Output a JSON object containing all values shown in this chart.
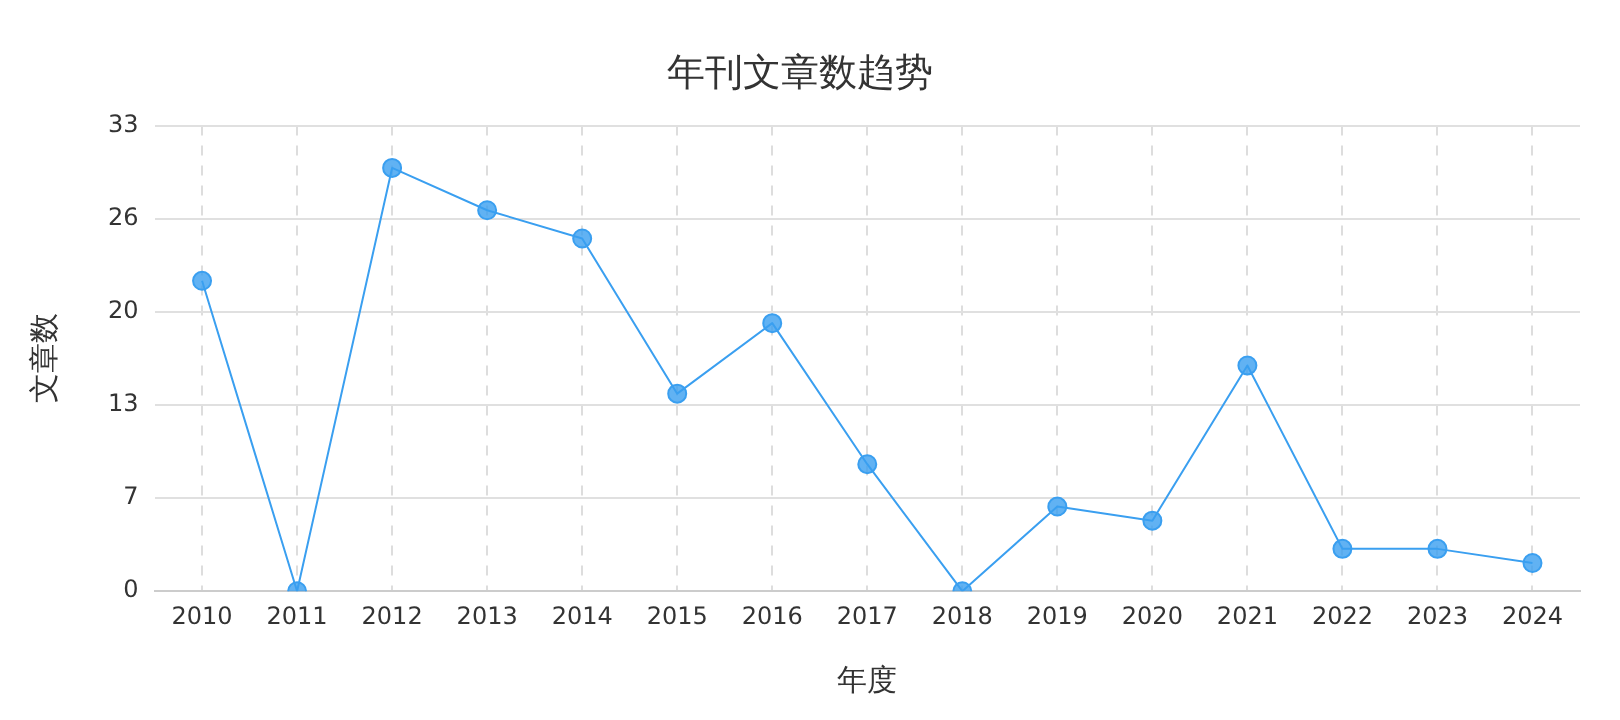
{
  "chart_data": {
    "type": "line",
    "title": "年刊文章数趋势",
    "xlabel": "年度",
    "ylabel": "文章数",
    "categories": [
      "2010",
      "2011",
      "2012",
      "2013",
      "2014",
      "2015",
      "2016",
      "2017",
      "2018",
      "2019",
      "2020",
      "2021",
      "2022",
      "2023",
      "2024"
    ],
    "series": [
      {
        "color": "#3a9ff0",
        "values": [
          22,
          0,
          30,
          27,
          25,
          14,
          19,
          9,
          0,
          6,
          5,
          16,
          3,
          3,
          2
        ]
      }
    ],
    "ylim": [
      0,
      33
    ],
    "yticks": [
      0,
      {
        "value": 6.6,
        "label": "7"
      },
      {
        "value": 13.2,
        "label": "13"
      },
      {
        "value": 19.8,
        "label": "20"
      },
      {
        "value": 26.4,
        "label": "26"
      },
      33
    ],
    "grid": true,
    "legend": false,
    "marker": "circle",
    "line_style": "solid"
  }
}
